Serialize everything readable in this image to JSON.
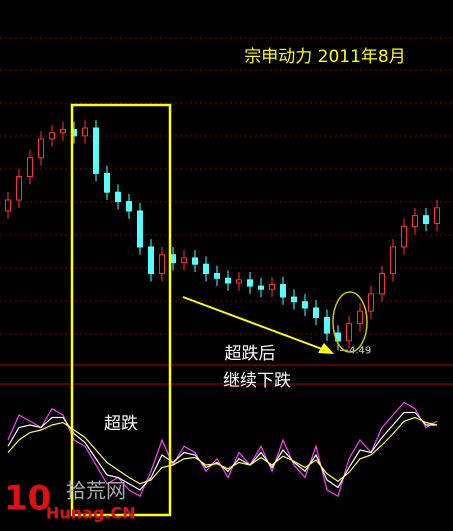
{
  "chart_data": {
    "type": "candlestick",
    "title": "宗申动力 2011年8月",
    "annotations": [
      "超跌后",
      "继续下跌",
      "超跌"
    ],
    "watermark": {
      "number": "10",
      "name": "拾荒网",
      "site": "Hunag.CN"
    },
    "up_color": "#ff3232",
    "down_color": "#54ffff",
    "ylim": [
      4.3,
      6.6
    ],
    "open": [
      5.38,
      5.45,
      5.6,
      5.72,
      5.84,
      5.88,
      5.9,
      5.86,
      5.91,
      5.62,
      5.5,
      5.44,
      5.38,
      5.15,
      4.98,
      5.1,
      5.05,
      5.08,
      5.04,
      4.98,
      4.95,
      4.92,
      4.94,
      4.9,
      4.88,
      4.91,
      4.83,
      4.8,
      4.76,
      4.7,
      4.6,
      4.55,
      4.66,
      4.74,
      4.85,
      4.98,
      5.15,
      5.28,
      5.35,
      5.3
    ],
    "high": [
      5.5,
      5.65,
      5.77,
      5.89,
      5.93,
      5.95,
      5.95,
      5.96,
      5.96,
      5.67,
      5.55,
      5.49,
      5.43,
      5.2,
      5.15,
      5.15,
      5.13,
      5.13,
      5.09,
      5.03,
      5.0,
      4.99,
      4.99,
      4.95,
      4.96,
      4.96,
      4.88,
      4.85,
      4.81,
      4.75,
      4.65,
      4.71,
      4.79,
      4.9,
      5.03,
      5.2,
      5.33,
      5.4,
      5.4,
      5.45
    ],
    "low": [
      5.33,
      5.4,
      5.55,
      5.67,
      5.79,
      5.83,
      5.81,
      5.81,
      5.57,
      5.45,
      5.39,
      5.33,
      5.1,
      4.93,
      4.93,
      5.0,
      5.0,
      4.99,
      4.93,
      4.9,
      4.87,
      4.87,
      4.85,
      4.83,
      4.83,
      4.78,
      4.75,
      4.71,
      4.65,
      4.55,
      4.49,
      4.5,
      4.61,
      4.69,
      4.8,
      4.93,
      5.1,
      5.23,
      5.25,
      5.25
    ],
    "close": [
      5.45,
      5.6,
      5.72,
      5.84,
      5.88,
      5.9,
      5.86,
      5.91,
      5.62,
      5.5,
      5.44,
      5.38,
      5.15,
      4.98,
      5.1,
      5.05,
      5.08,
      5.04,
      4.98,
      4.95,
      4.92,
      4.94,
      4.9,
      4.88,
      4.91,
      4.83,
      4.8,
      4.76,
      4.7,
      4.6,
      4.55,
      4.66,
      4.74,
      4.85,
      4.98,
      5.15,
      5.28,
      5.35,
      5.3,
      5.4
    ],
    "low_label_index": 30,
    "indicator": {
      "ylim": [
        0,
        100
      ],
      "series": [
        {
          "color": "#ff40ff",
          "values": [
            60,
            80,
            75,
            70,
            85,
            80,
            60,
            55,
            40,
            25,
            30,
            20,
            15,
            35,
            60,
            40,
            55,
            50,
            35,
            45,
            30,
            50,
            40,
            55,
            35,
            60,
            40,
            30,
            55,
            20,
            15,
            45,
            60,
            50,
            70,
            80,
            90,
            85,
            70,
            75
          ]
        },
        {
          "color": "#ffffff",
          "values": [
            55,
            70,
            72,
            70,
            78,
            78,
            65,
            58,
            45,
            32,
            30,
            25,
            20,
            30,
            48,
            42,
            50,
            48,
            38,
            42,
            35,
            45,
            40,
            50,
            38,
            52,
            42,
            35,
            48,
            28,
            22,
            38,
            52,
            50,
            62,
            72,
            82,
            82,
            72,
            72
          ]
        },
        {
          "color": "#ffff40",
          "values": [
            50,
            60,
            66,
            68,
            72,
            74,
            68,
            62,
            52,
            42,
            36,
            30,
            25,
            28,
            38,
            40,
            45,
            46,
            40,
            41,
            37,
            42,
            40,
            46,
            40,
            47,
            43,
            38,
            44,
            33,
            27,
            34,
            45,
            48,
            56,
            65,
            75,
            78,
            74,
            72
          ]
        }
      ]
    }
  }
}
